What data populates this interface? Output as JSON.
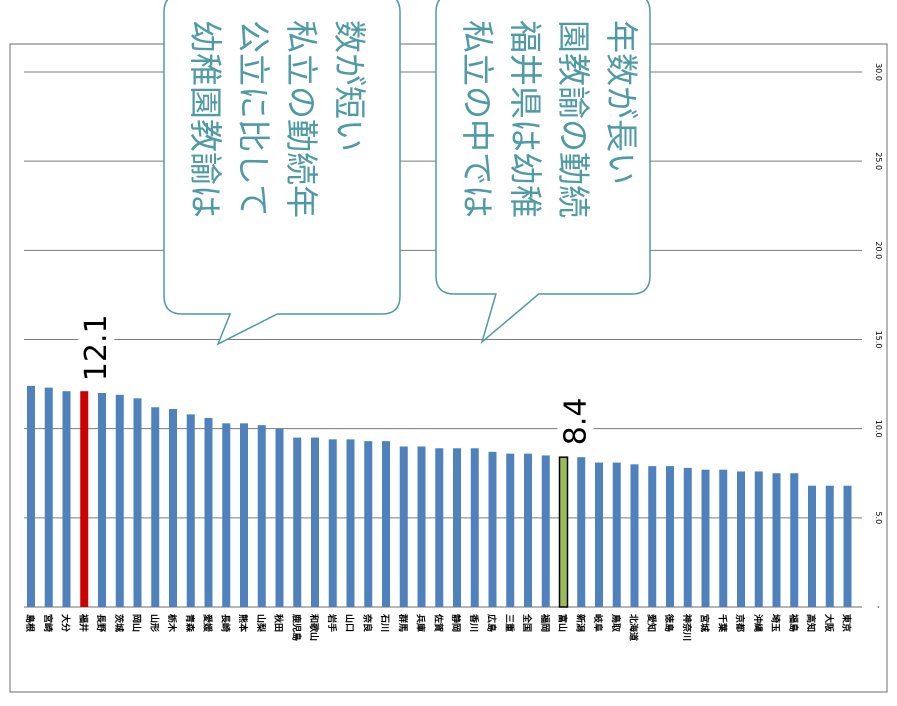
{
  "chart_data": {
    "type": "bar",
    "orientation": "vertical-bars, figure rotated 90 degrees",
    "y_ticks": [
      "-",
      "5.0",
      "10.0",
      "15.0",
      "20.0",
      "25.0",
      "30.0"
    ],
    "ylim": [
      0,
      30
    ],
    "grid": true,
    "categories": [
      "島根",
      "宮崎",
      "大分",
      "福井",
      "長野",
      "茨城",
      "岡山",
      "山形",
      "栃木",
      "青森",
      "愛媛",
      "長崎",
      "熊本",
      "山梨",
      "秋田",
      "鹿児島",
      "和歌山",
      "岩手",
      "山口",
      "奈良",
      "石川",
      "群馬",
      "兵庫",
      "佐賀",
      "静岡",
      "香川",
      "広島",
      "三重",
      "全国",
      "福岡",
      "富山",
      "新潟",
      "岐阜",
      "鳥取",
      "北海道",
      "愛知",
      "徳島",
      "神奈川",
      "宮城",
      "千葉",
      "京都",
      "沖縄",
      "埼玉",
      "福島",
      "高知",
      "大阪",
      "東京"
    ],
    "values": [
      12.4,
      12.3,
      12.1,
      12.1,
      12.0,
      11.9,
      11.7,
      11.2,
      11.1,
      10.8,
      10.6,
      10.3,
      10.3,
      10.2,
      10.0,
      9.5,
      9.5,
      9.4,
      9.4,
      9.3,
      9.3,
      9.0,
      9.0,
      8.9,
      8.9,
      8.9,
      8.7,
      8.6,
      8.6,
      8.5,
      8.4,
      8.4,
      8.1,
      8.1,
      8.0,
      7.9,
      7.9,
      7.8,
      7.7,
      7.7,
      7.6,
      7.6,
      7.5,
      7.5,
      6.8,
      6.8,
      6.8
    ],
    "highlight": [
      {
        "index": 3,
        "color": "#cc0000",
        "label": "12.1"
      },
      {
        "index": 30,
        "color": "#9bbb59",
        "label": "8.4"
      }
    ],
    "bar_color": "#4f81bd",
    "callouts": [
      {
        "lines": [
          "幼稚園教諭は",
          "公立に比して",
          "私立の勤続年",
          "数が短い"
        ]
      },
      {
        "lines": [
          "私立の中では",
          "福井県は幼稚",
          "園教諭の勤続",
          "年数が長い"
        ]
      }
    ]
  }
}
